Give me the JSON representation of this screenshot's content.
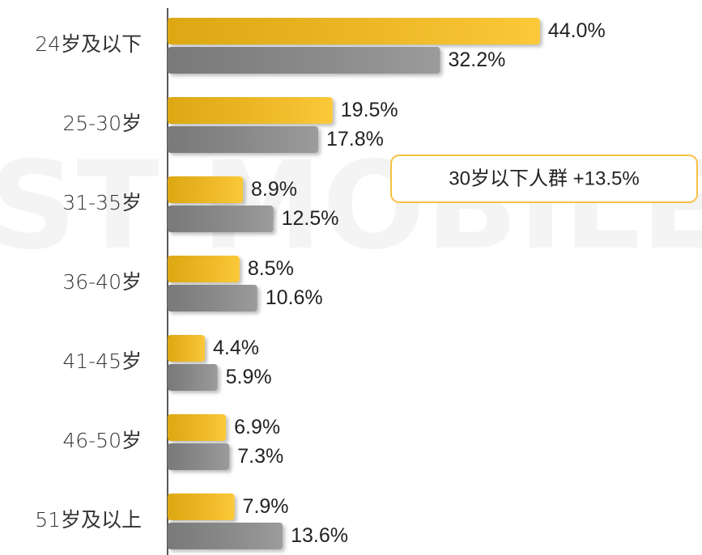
{
  "chart_data": {
    "type": "bar",
    "orientation": "horizontal",
    "watermark": "ST MOBILE",
    "categories": [
      "24岁及以下",
      "25-30岁",
      "31-35岁",
      "36-40岁",
      "41-45岁",
      "46-50岁",
      "51岁及以上"
    ],
    "series": [
      {
        "color": "#fbbf12",
        "values": [
          44.0,
          19.5,
          8.9,
          8.5,
          4.4,
          6.9,
          7.9
        ],
        "value_labels": [
          "44.0%",
          "19.5%",
          "8.9%",
          "8.5%",
          "4.4%",
          "6.9%",
          "7.9%"
        ]
      },
      {
        "color": "#8a8a8a",
        "values": [
          32.2,
          17.8,
          12.5,
          10.6,
          5.9,
          7.3,
          13.6
        ],
        "value_labels": [
          "32.2%",
          "17.8%",
          "12.5%",
          "10.6%",
          "5.9%",
          "7.3%",
          "13.6%"
        ]
      }
    ],
    "xlim": [
      0,
      60
    ],
    "annotation": "30岁以下人群 +13.5%"
  }
}
